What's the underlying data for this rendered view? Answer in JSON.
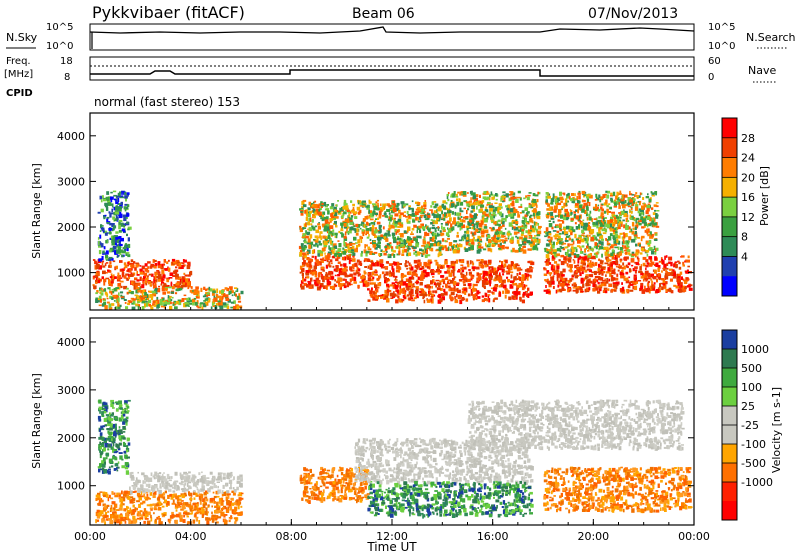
{
  "header": {
    "station": "Pykkvibaer (fitACF)",
    "beam": "Beam 06",
    "date": "07/Nov/2013"
  },
  "status_panel": {
    "nsky_label": "N.Sky",
    "nsearch_label": "N.Search",
    "nsky_ticks": [
      "10^5",
      "10^0"
    ],
    "nsearch_ticks": [
      "10^5",
      "10^0"
    ],
    "freq_label": "Freq.",
    "freq_unit": "[MHz]",
    "freq_ticks": [
      "18",
      "8"
    ],
    "nave_label": "Nave",
    "nave_ticks": [
      "60",
      "0"
    ],
    "cpid_label": "CPID",
    "cpid_text": "normal (fast stereo) 153"
  },
  "colors": {
    "frame": "#000000",
    "background_gs": "#c8c8c0"
  },
  "chart_data": [
    {
      "type": "heatmap",
      "name_key": "power",
      "xlabel": "",
      "ylabel": "Slant Range [km]",
      "xlim_hours": [
        0,
        24
      ],
      "ylim": [
        180,
        4500
      ],
      "yticks": [
        1000,
        2000,
        3000,
        4000
      ],
      "colorbar_label": "Power [dB]",
      "colorbar_ticks": [
        "28",
        "24",
        "20",
        "16",
        "12",
        "8",
        "4"
      ],
      "colorbar_colors": [
        "#ff0000",
        "#f04000",
        "#ff7d00",
        "#f5b000",
        "#7ad040",
        "#3aa040",
        "#2e8b57",
        "#2040b0",
        "#0000ff"
      ],
      "regions": [
        {
          "t0": 0.1,
          "t1": 4.0,
          "r0": 700,
          "r1": 1300,
          "value": "high"
        },
        {
          "t0": 0.2,
          "t1": 6.0,
          "r0": 250,
          "r1": 700,
          "value": "mid"
        },
        {
          "t0": 0.3,
          "t1": 1.5,
          "r0": 1300,
          "r1": 2800,
          "value": "low"
        },
        {
          "t0": 8.3,
          "t1": 11.0,
          "r0": 700,
          "r1": 1400,
          "value": "high"
        },
        {
          "t0": 8.3,
          "t1": 14.0,
          "r0": 1400,
          "r1": 2600,
          "value": "mid"
        },
        {
          "t0": 11.0,
          "t1": 17.5,
          "r0": 400,
          "r1": 1300,
          "value": "high"
        },
        {
          "t0": 14.0,
          "t1": 17.8,
          "r0": 1500,
          "r1": 2800,
          "value": "mid"
        },
        {
          "t0": 18.0,
          "t1": 23.8,
          "r0": 600,
          "r1": 1400,
          "value": "high"
        },
        {
          "t0": 18.0,
          "t1": 22.5,
          "r0": 1400,
          "r1": 2800,
          "value": "mid"
        }
      ]
    },
    {
      "type": "heatmap",
      "name_key": "velocity",
      "xlabel": "Time UT",
      "ylabel": "Slant Range [km]",
      "xlim_hours": [
        0,
        24
      ],
      "ylim": [
        180,
        4500
      ],
      "yticks": [
        1000,
        2000,
        3000,
        4000
      ],
      "xticks": [
        "00:00",
        "04:00",
        "08:00",
        "12:00",
        "16:00",
        "20:00",
        "00:00"
      ],
      "colorbar_label": "Velocity [m s-1]",
      "colorbar_ticks": [
        "1000",
        "500",
        "100",
        "25",
        "-25",
        "-100",
        "-500",
        "-1000"
      ],
      "colorbar_colors": [
        "#1a3ea0",
        "#2e7a50",
        "#3faa3f",
        "#6cd040",
        "#c8c8c0",
        "#c8c8c0",
        "#ffa500",
        "#ff7000",
        "#ff2000",
        "#ff0000"
      ],
      "regions": [
        {
          "t0": 0.2,
          "t1": 6.0,
          "r0": 250,
          "r1": 900,
          "value": "neg"
        },
        {
          "t0": 1.5,
          "t1": 6.0,
          "r0": 900,
          "r1": 1300,
          "value": "gs"
        },
        {
          "t0": 0.3,
          "t1": 1.5,
          "r0": 1300,
          "r1": 2800,
          "value": "pos"
        },
        {
          "t0": 8.3,
          "t1": 11.0,
          "r0": 700,
          "r1": 1400,
          "value": "neg"
        },
        {
          "t0": 10.5,
          "t1": 17.5,
          "r0": 1100,
          "r1": 2000,
          "value": "gs"
        },
        {
          "t0": 11.0,
          "t1": 17.5,
          "r0": 400,
          "r1": 1100,
          "value": "pos"
        },
        {
          "t0": 15.0,
          "t1": 23.5,
          "r0": 1800,
          "r1": 2800,
          "value": "gs"
        },
        {
          "t0": 18.0,
          "t1": 23.8,
          "r0": 500,
          "r1": 1400,
          "value": "neg"
        }
      ]
    }
  ]
}
